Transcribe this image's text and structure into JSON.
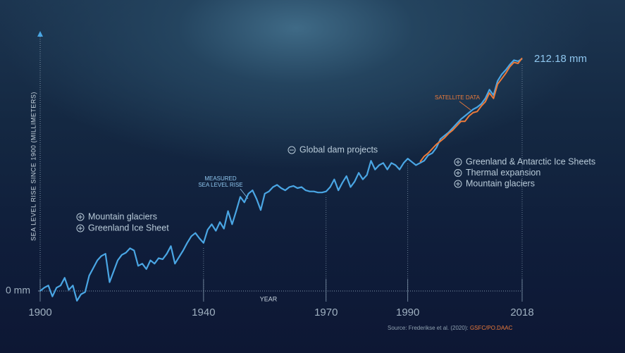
{
  "chart_data": {
    "type": "line",
    "y_label": "SEA LEVEL RISE SINCE 1900 (MILLIMETERS)",
    "x_label": "YEAR",
    "xlim": [
      1900,
      2018
    ],
    "xticks": [
      1900,
      1940,
      1970,
      1990,
      2018
    ],
    "ylim": [
      -12,
      237
    ],
    "yticks": [
      {
        "value": 0,
        "label": "0 mm"
      }
    ],
    "end_label": "212.18 mm",
    "x": [
      1900,
      1901,
      1902,
      1903,
      1904,
      1905,
      1906,
      1907,
      1908,
      1909,
      1910,
      1911,
      1912,
      1913,
      1914,
      1915,
      1916,
      1917,
      1918,
      1919,
      1920,
      1921,
      1922,
      1923,
      1924,
      1925,
      1926,
      1927,
      1928,
      1929,
      1930,
      1931,
      1932,
      1933,
      1934,
      1935,
      1936,
      1937,
      1938,
      1939,
      1940,
      1941,
      1942,
      1943,
      1944,
      1945,
      1946,
      1947,
      1948,
      1949,
      1950,
      1951,
      1952,
      1953,
      1954,
      1955,
      1956,
      1957,
      1958,
      1959,
      1960,
      1961,
      1962,
      1963,
      1964,
      1965,
      1966,
      1967,
      1968,
      1969,
      1970,
      1971,
      1972,
      1973,
      1974,
      1975,
      1976,
      1977,
      1978,
      1979,
      1980,
      1981,
      1982,
      1983,
      1984,
      1985,
      1986,
      1987,
      1988,
      1989,
      1990,
      1991,
      1992,
      1993,
      1994,
      1995,
      1996,
      1997,
      1998,
      1999,
      2000,
      2001,
      2002,
      2003,
      2004,
      2005,
      2006,
      2007,
      2008,
      2009,
      2010,
      2011,
      2012,
      2013,
      2014,
      2015,
      2016,
      2017,
      2018
    ],
    "series": [
      {
        "name": "MEASURED\nSEA LEVEL RISE",
        "color": "#4aa6e4",
        "values": [
          0,
          3,
          5,
          -5,
          3,
          5,
          12,
          1,
          5,
          -9,
          -3,
          -1,
          14,
          21,
          28,
          32,
          34,
          8,
          18,
          28,
          33,
          35,
          39,
          37,
          23,
          25,
          20,
          28,
          25,
          30,
          29,
          34,
          41,
          25,
          31,
          37,
          44,
          50,
          53,
          48,
          44,
          56,
          61,
          55,
          63,
          57,
          73,
          61,
          73,
          86,
          81,
          89,
          92,
          84,
          74,
          89,
          91,
          95,
          97,
          94,
          92,
          95,
          96,
          94,
          95,
          92,
          91,
          91,
          90,
          90,
          91,
          95,
          102,
          92,
          99,
          105,
          95,
          100,
          108,
          102,
          106,
          119,
          111,
          115,
          117,
          111,
          117,
          115,
          111,
          117,
          121,
          118,
          115,
          117,
          119,
          124,
          126,
          131,
          139,
          142,
          145,
          149,
          153,
          157,
          160,
          163,
          166,
          168,
          171,
          176,
          184,
          179,
          192,
          198,
          202,
          207,
          211,
          210,
          212.18
        ]
      },
      {
        "name": "SATELLITE DATA",
        "color": "#ec7a3a",
        "values": [
          null,
          null,
          null,
          null,
          null,
          null,
          null,
          null,
          null,
          null,
          null,
          null,
          null,
          null,
          null,
          null,
          null,
          null,
          null,
          null,
          null,
          null,
          null,
          null,
          null,
          null,
          null,
          null,
          null,
          null,
          null,
          null,
          null,
          null,
          null,
          null,
          null,
          null,
          null,
          null,
          null,
          null,
          null,
          null,
          null,
          null,
          null,
          null,
          null,
          null,
          null,
          null,
          null,
          null,
          null,
          null,
          null,
          null,
          null,
          null,
          null,
          null,
          null,
          null,
          null,
          null,
          null,
          null,
          null,
          null,
          null,
          null,
          null,
          null,
          null,
          null,
          null,
          null,
          null,
          null,
          null,
          null,
          null,
          null,
          null,
          null,
          null,
          null,
          null,
          null,
          null,
          null,
          null,
          118,
          123,
          126,
          130,
          134,
          137,
          140,
          144,
          147,
          151,
          155,
          155,
          160,
          163,
          164,
          169,
          173,
          181,
          176,
          189,
          194,
          199,
          205,
          209,
          208,
          213
        ]
      }
    ],
    "annotations_early": [
      "Mountain glaciers",
      "Greenland Ice Sheet"
    ],
    "annotation_dams": "Global dam projects",
    "annotations_recent": [
      "Greenland & Antarctic Ice Sheets",
      "Thermal expansion",
      "Mountain glaciers"
    ],
    "source": "Source: Frederikse et al. (2020):",
    "source_link": "GSFC/PO.DAAC"
  }
}
